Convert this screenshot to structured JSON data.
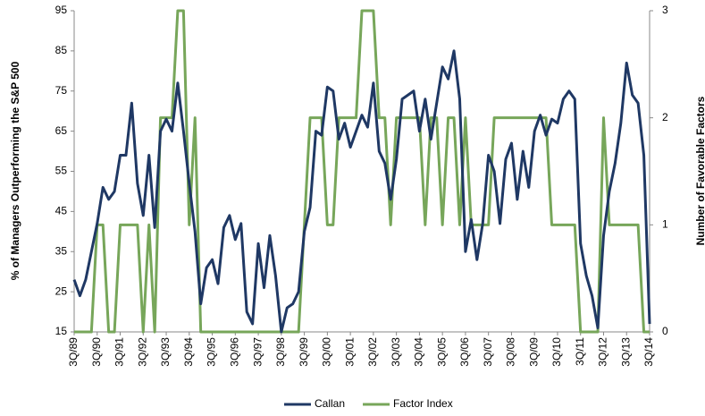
{
  "chart_data": {
    "type": "line",
    "y_label": "% of Managers Outperforming the S&P 500",
    "y2_label": "Number of Favorable Factors",
    "categories": [
      "3Q/89",
      null,
      null,
      null,
      "3Q/90",
      null,
      null,
      null,
      "3Q/91",
      null,
      null,
      null,
      "3Q/92",
      null,
      null,
      null,
      "3Q/93",
      null,
      null,
      null,
      "3Q/94",
      null,
      null,
      null,
      "3Q/95",
      null,
      null,
      null,
      "3Q/96",
      null,
      null,
      null,
      "3Q/97",
      null,
      null,
      null,
      "3Q/98",
      null,
      null,
      null,
      "3Q/99",
      null,
      null,
      null,
      "3Q/00",
      null,
      null,
      null,
      "3Q/01",
      null,
      null,
      null,
      "3Q/02",
      null,
      null,
      null,
      "3Q/03",
      null,
      null,
      null,
      "3Q/04",
      null,
      null,
      null,
      "3Q/05",
      null,
      null,
      null,
      "3Q/06",
      null,
      null,
      null,
      "3Q/07",
      null,
      null,
      null,
      "3Q/08",
      null,
      null,
      null,
      "3Q/09",
      null,
      null,
      null,
      "3Q/10",
      null,
      null,
      null,
      "3Q/11",
      null,
      null,
      null,
      "3Q/12",
      null,
      null,
      null,
      "3Q/13",
      null,
      null,
      null,
      "3Q/14"
    ],
    "series": [
      {
        "name": "Callan",
        "color": "#1f3864",
        "values": [
          28,
          24,
          28,
          35,
          42,
          51,
          48,
          50,
          59,
          59,
          72,
          52,
          44,
          59,
          41,
          65,
          68,
          65,
          77,
          65,
          52,
          40,
          22,
          31,
          33,
          27,
          41,
          44,
          38,
          42,
          20,
          17,
          37,
          26,
          39,
          29,
          15,
          21,
          22,
          25,
          40,
          46,
          65,
          64,
          76,
          75,
          63,
          67,
          61,
          65,
          69,
          66,
          77,
          60,
          57,
          48,
          58,
          73,
          74,
          75,
          65,
          73,
          63,
          72,
          81,
          78,
          85,
          73,
          35,
          43,
          33,
          42,
          59,
          55,
          42,
          58,
          62,
          48,
          60,
          51,
          65,
          69,
          64,
          68,
          67,
          73,
          75,
          73,
          37,
          29,
          24,
          16,
          39,
          50,
          57,
          67,
          82,
          74,
          72,
          59,
          17
        ]
      },
      {
        "name": "Factor Index",
        "color": "#77a65a",
        "axis": "y2",
        "values": [
          0,
          0,
          0,
          0,
          1,
          1,
          0,
          0,
          1,
          1,
          1,
          1,
          0,
          1,
          0,
          2,
          2,
          2,
          3,
          3,
          1,
          2,
          0,
          0,
          0,
          0,
          0,
          0,
          0,
          0,
          0,
          0,
          0,
          0,
          0,
          0,
          0,
          0,
          0,
          0,
          1,
          2,
          2,
          2,
          1,
          1,
          2,
          2,
          2,
          2,
          3,
          3,
          3,
          2,
          2,
          1,
          2,
          2,
          2,
          2,
          2,
          1,
          2,
          2,
          1,
          2,
          2,
          1,
          2,
          1,
          1,
          1,
          1,
          2,
          2,
          2,
          2,
          2,
          2,
          2,
          2,
          2,
          2,
          1,
          1,
          1,
          1,
          1,
          0,
          0,
          0,
          0,
          2,
          1,
          1,
          1,
          1,
          1,
          1,
          0,
          0
        ]
      }
    ],
    "ylim": [
      15,
      95
    ],
    "yticks": [
      15,
      25,
      35,
      45,
      55,
      65,
      75,
      85,
      95
    ],
    "y2lim": [
      0,
      3
    ],
    "y2ticks": [
      0,
      1,
      2,
      3
    ],
    "legend": "bottom"
  }
}
